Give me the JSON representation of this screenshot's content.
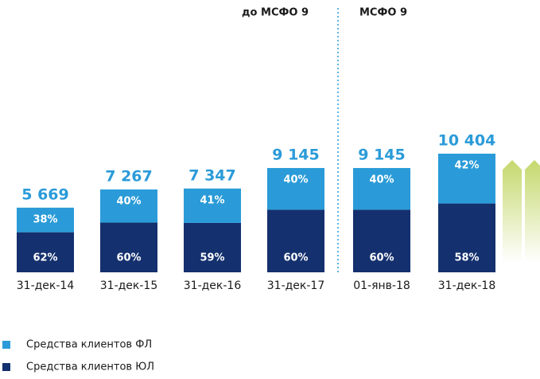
{
  "chart_data": {
    "type": "bar",
    "annotations": [
      "до МСФО 9",
      "МСФО 9"
    ],
    "categories": [
      "31-дек-14",
      "31-дек-15",
      "31-дек-16",
      "31-дек-17",
      "01-янв-18",
      "31-дек-18"
    ],
    "totals": {
      "values": [
        5669,
        7267,
        7347,
        9145,
        9145,
        10404
      ],
      "value_labels": [
        "5 669",
        "7 267",
        "7 347",
        "9 145",
        "9 145",
        "10 404"
      ]
    },
    "series": [
      {
        "name": "Средства клиентов ЮЛ",
        "color": "#14306e",
        "values": [
          62,
          60,
          59,
          60,
          60,
          58
        ],
        "value_labels": [
          "62%",
          "60%",
          "59%",
          "60%",
          "60%",
          "58%"
        ]
      },
      {
        "name": "Средства клиентов ФЛ",
        "color": "#2a9bd8",
        "values": [
          38,
          40,
          41,
          40,
          40,
          42
        ],
        "value_labels": [
          "38%",
          "40%",
          "41%",
          "40%",
          "40%",
          "42%"
        ]
      }
    ]
  }
}
